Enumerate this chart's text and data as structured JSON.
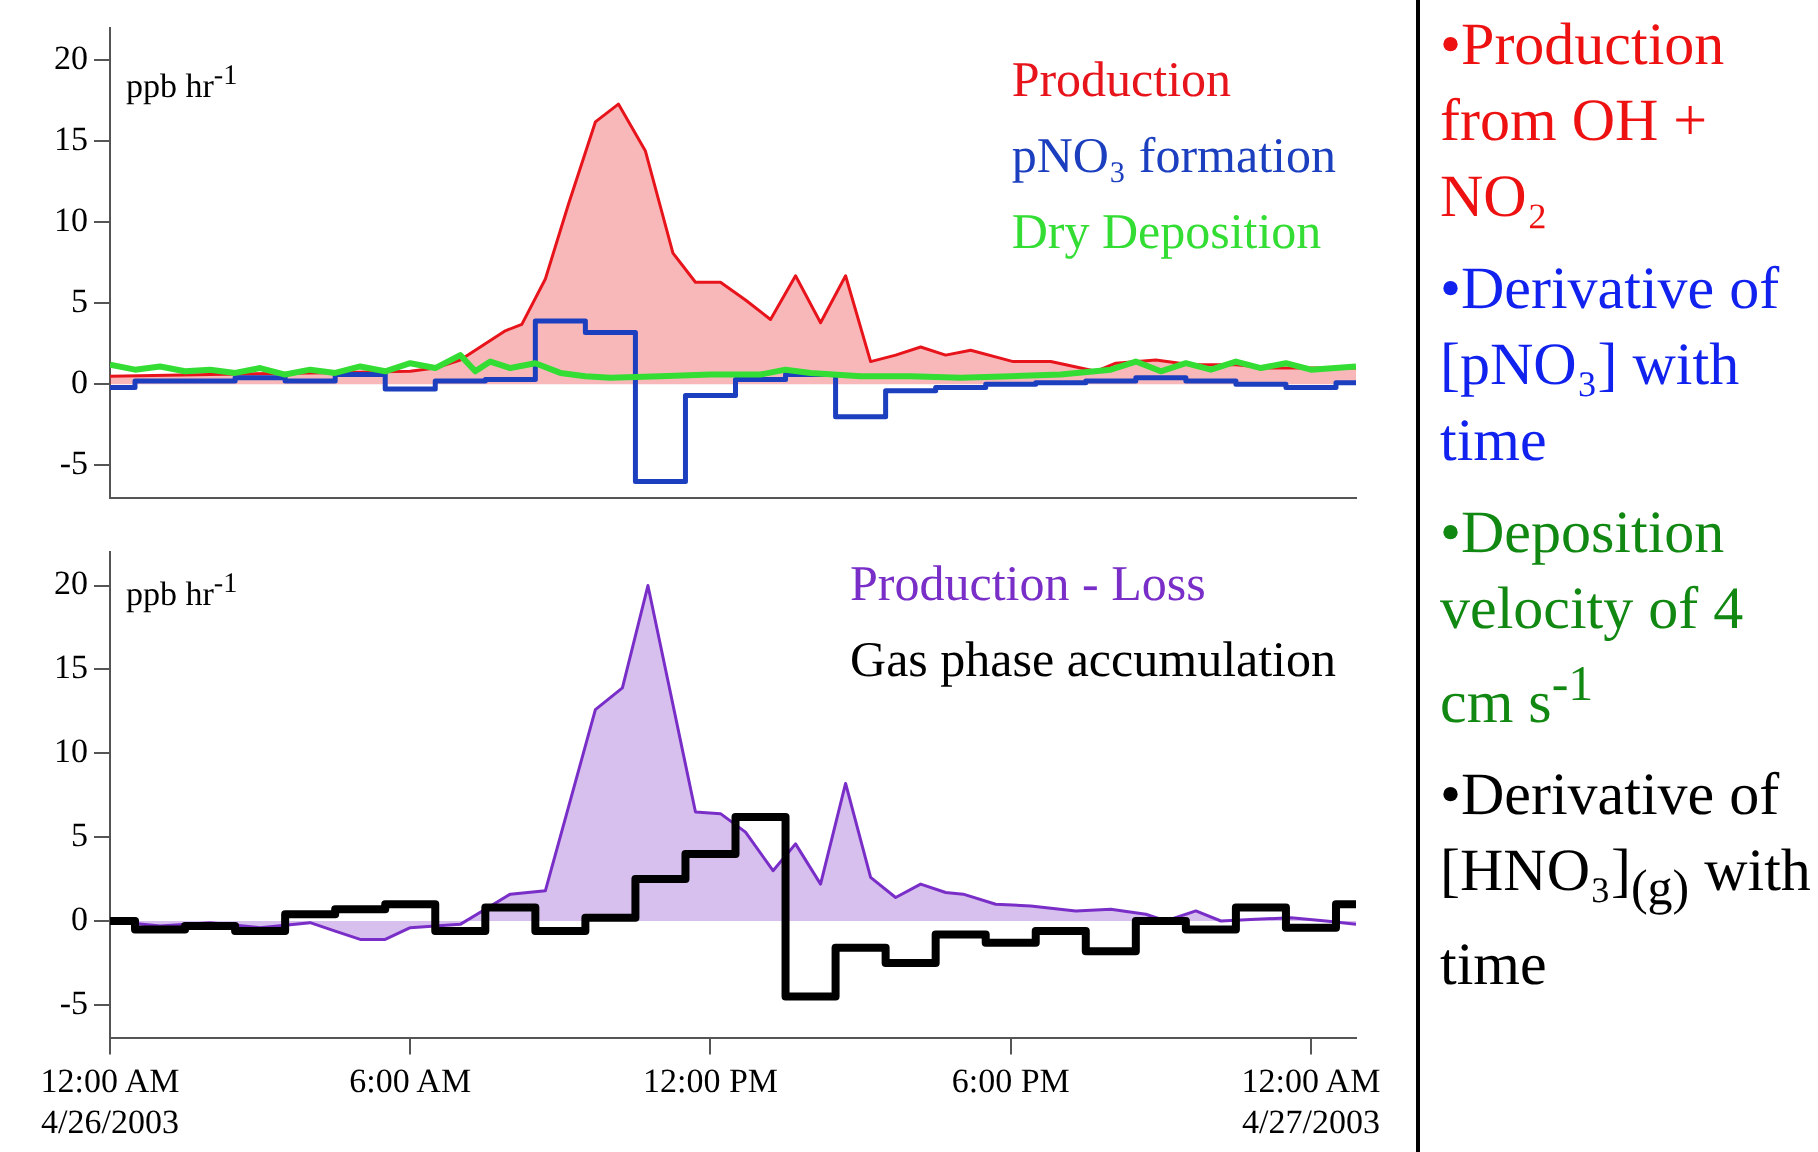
{
  "chart_data": [
    {
      "type": "area",
      "ylabel": "ppb hr$^{-1}$",
      "xlim": [
        0,
        24.9
      ],
      "ylim": [
        -7,
        22
      ],
      "yticks": [
        -5,
        0,
        5,
        10,
        15,
        20
      ],
      "tick_labels": "y",
      "grid": false,
      "marker": "none",
      "series": [
        {
          "name": "Production",
          "type": "area",
          "color": "#e8141c",
          "x": [
            0,
            2,
            4,
            6,
            6.5,
            7,
            7.5,
            7.9,
            8.23,
            8.7,
            9.16,
            9.7,
            10.16,
            10.7,
            11.25,
            11.7,
            12.2,
            12.7,
            13.2,
            13.7,
            14.2,
            14.7,
            15.2,
            15.7,
            16.2,
            16.7,
            17.2,
            18.05,
            18.8,
            19.7,
            20.1,
            20.9,
            21.6,
            22.5,
            23.2,
            24.9
          ],
          "values": [
            0.5,
            0.6,
            0.7,
            0.8,
            1.0,
            1.5,
            2.5,
            3.3,
            3.7,
            6.5,
            11.1,
            16.2,
            17.3,
            14.4,
            8.1,
            6.3,
            6.3,
            5.2,
            4.0,
            6.7,
            3.8,
            6.7,
            1.4,
            1.8,
            2.3,
            1.8,
            2.1,
            1.4,
            1.4,
            0.8,
            1.3,
            1.5,
            1.2,
            1.2,
            1.0,
            1.0
          ]
        },
        {
          "name": "pNO₃ formation",
          "type": "step",
          "color": "#1c3fbf",
          "x": [
            0,
            0.5,
            2.5,
            3.5,
            4.5,
            5.5,
            6.5,
            7.5,
            8.5,
            9.5,
            10.5,
            11.5,
            12.5,
            13.5,
            14.5,
            15.5,
            16.5,
            17.5,
            18.5,
            19.5,
            20.5,
            21.5,
            22.5,
            23.5,
            24.5,
            24.9
          ],
          "values": [
            -0.2,
            0.2,
            0.4,
            0.2,
            0.6,
            -0.3,
            0.2,
            0.3,
            3.9,
            3.2,
            -6.0,
            -0.7,
            0.3,
            0.6,
            -2.0,
            -0.4,
            -0.2,
            0.0,
            0.1,
            0.2,
            0.4,
            0.2,
            0.0,
            -0.2,
            0.1,
            0.1
          ]
        },
        {
          "name": "Dry Deposition",
          "type": "line",
          "color": "#33dd33",
          "x": [
            0,
            0.5,
            1,
            1.5,
            2,
            2.5,
            3,
            3.5,
            4,
            4.5,
            5,
            5.5,
            6,
            6.5,
            7,
            7.3,
            7.6,
            8,
            8.5,
            9,
            9.5,
            10,
            11,
            12,
            13,
            13.5,
            14,
            15,
            16,
            17,
            18,
            19,
            20,
            20.5,
            21,
            21.5,
            22,
            22.5,
            23,
            23.5,
            24,
            24.9
          ],
          "values": [
            1.2,
            0.9,
            1.1,
            0.8,
            0.9,
            0.7,
            1.0,
            0.6,
            0.9,
            0.7,
            1.1,
            0.8,
            1.3,
            1.0,
            1.8,
            0.8,
            1.4,
            1.0,
            1.3,
            0.7,
            0.5,
            0.4,
            0.5,
            0.6,
            0.6,
            0.9,
            0.7,
            0.5,
            0.5,
            0.4,
            0.5,
            0.6,
            0.9,
            1.4,
            0.8,
            1.3,
            0.9,
            1.4,
            1.0,
            1.3,
            0.9,
            1.1
          ]
        }
      ]
    },
    {
      "type": "area",
      "ylabel": "ppb hr$^{-1}$",
      "xlim": [
        0,
        24.9
      ],
      "ylim": [
        -7,
        22
      ],
      "yticks": [
        -5,
        0,
        5,
        10,
        15,
        20
      ],
      "xticks": [
        {
          "value": 0,
          "label": "12:00 AM\n4/26/2003"
        },
        {
          "value": 6,
          "label": "6:00 AM"
        },
        {
          "value": 12,
          "label": "12:00 PM"
        },
        {
          "value": 18,
          "label": "6:00 PM"
        },
        {
          "value": 24,
          "label": "12:00 AM\n4/27/2003"
        }
      ],
      "grid": false,
      "marker": "none",
      "series": [
        {
          "name": "Production - Loss",
          "type": "area",
          "color": "#7a2ec8",
          "x": [
            0,
            1,
            2,
            3,
            4,
            4.5,
            5,
            5.5,
            6,
            7,
            7.5,
            8,
            8.7,
            9.7,
            10.24,
            10.75,
            11.7,
            12.2,
            12.7,
            13.25,
            13.7,
            14.2,
            14.7,
            15.2,
            15.7,
            16.2,
            16.7,
            17.05,
            17.7,
            18.4,
            19.3,
            20.0,
            20.7,
            21.1,
            21.7,
            22.2,
            22.9,
            23.6,
            24.3,
            24.9
          ],
          "values": [
            0,
            -0.3,
            -0.1,
            -0.4,
            -0.1,
            -0.6,
            -1.1,
            -1.1,
            -0.4,
            -0.2,
            0.7,
            1.6,
            1.8,
            12.6,
            13.9,
            20.0,
            6.5,
            6.4,
            5.3,
            3.0,
            4.6,
            2.2,
            8.2,
            2.6,
            1.4,
            2.2,
            1.7,
            1.6,
            1.0,
            0.9,
            0.6,
            0.7,
            0.4,
            0,
            0.6,
            0,
            0.1,
            0.2,
            0,
            -0.2
          ]
        },
        {
          "name": "Gas phase accumulation",
          "type": "step",
          "color": "#000000",
          "x": [
            0,
            0.5,
            1.5,
            2.5,
            3.5,
            4.5,
            5.5,
            6.5,
            7.5,
            8.5,
            9.5,
            10.5,
            11.5,
            12.5,
            13.5,
            14.5,
            15.5,
            16.5,
            17.5,
            18.5,
            19.5,
            20.5,
            21.5,
            22.5,
            23.5,
            24.5,
            24.9
          ],
          "values": [
            0,
            -0.5,
            -0.3,
            -0.6,
            0.4,
            0.7,
            1.0,
            -0.6,
            0.8,
            -0.6,
            0.2,
            2.5,
            4.0,
            6.2,
            -4.5,
            -1.6,
            -2.5,
            -0.8,
            -1.3,
            -0.6,
            -1.8,
            0,
            -0.5,
            0.8,
            -0.4,
            1.0,
            1.0
          ]
        }
      ]
    },
    {
      "type": "other",
      "colors": [
        "#ee1111",
        "#1122ee",
        "#118811",
        "#000000"
      ],
      "annotations": [
        "•Production from OH + NO₂",
        "•Derivative of [pNO₃] with time",
        "•Deposition velocity of 4 cm s$^{-1}$",
        "•Derivative of [HNO₃]$_{(g)}$ with time"
      ]
    }
  ]
}
